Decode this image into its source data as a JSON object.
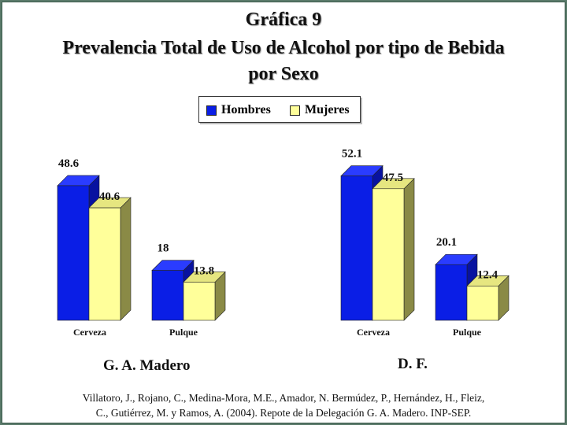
{
  "chart_data": {
    "type": "bar",
    "title": "Gráfica 9",
    "subtitle": "Prevalencia Total de Uso de Alcohol por tipo de Bebida",
    "subtitle2": "por Sexo",
    "legend_position": "top-center",
    "series_names": [
      "Hombres",
      "Mujeres"
    ],
    "colors": {
      "Hombres": "#0a1ee6",
      "Mujeres": "#ffff9a"
    },
    "groups": [
      {
        "name": "G. A. Madero",
        "categories": [
          "Cerveza",
          "Pulque"
        ],
        "series": [
          {
            "name": "Hombres",
            "values": [
              48.6,
              18
            ]
          },
          {
            "name": "Mujeres",
            "values": [
              40.6,
              13.8
            ]
          }
        ]
      },
      {
        "name": "D. F.",
        "categories": [
          "Cerveza",
          "Pulque"
        ],
        "series": [
          {
            "name": "Hombres",
            "values": [
              52.1,
              20.1
            ]
          },
          {
            "name": "Mujeres",
            "values": [
              47.5,
              12.4
            ]
          }
        ]
      }
    ],
    "value_labels": [
      [
        "48.6",
        "18",
        "40.6",
        "13.8"
      ],
      [
        "52.1",
        "20.1",
        "47.5",
        "12.4"
      ]
    ],
    "ylim": [
      0,
      60
    ],
    "grid": false
  },
  "citation_line1": "Villatoro, J., Rojano, C., Medina-Mora, M.E., Amador, N. Bermúdez, P., Hernández, H., Fleiz,",
  "citation_line2": "C., Gutiérrez, M. y Ramos, A. (2004). Repote de la Delegación G. A. Madero. INP-SEP."
}
